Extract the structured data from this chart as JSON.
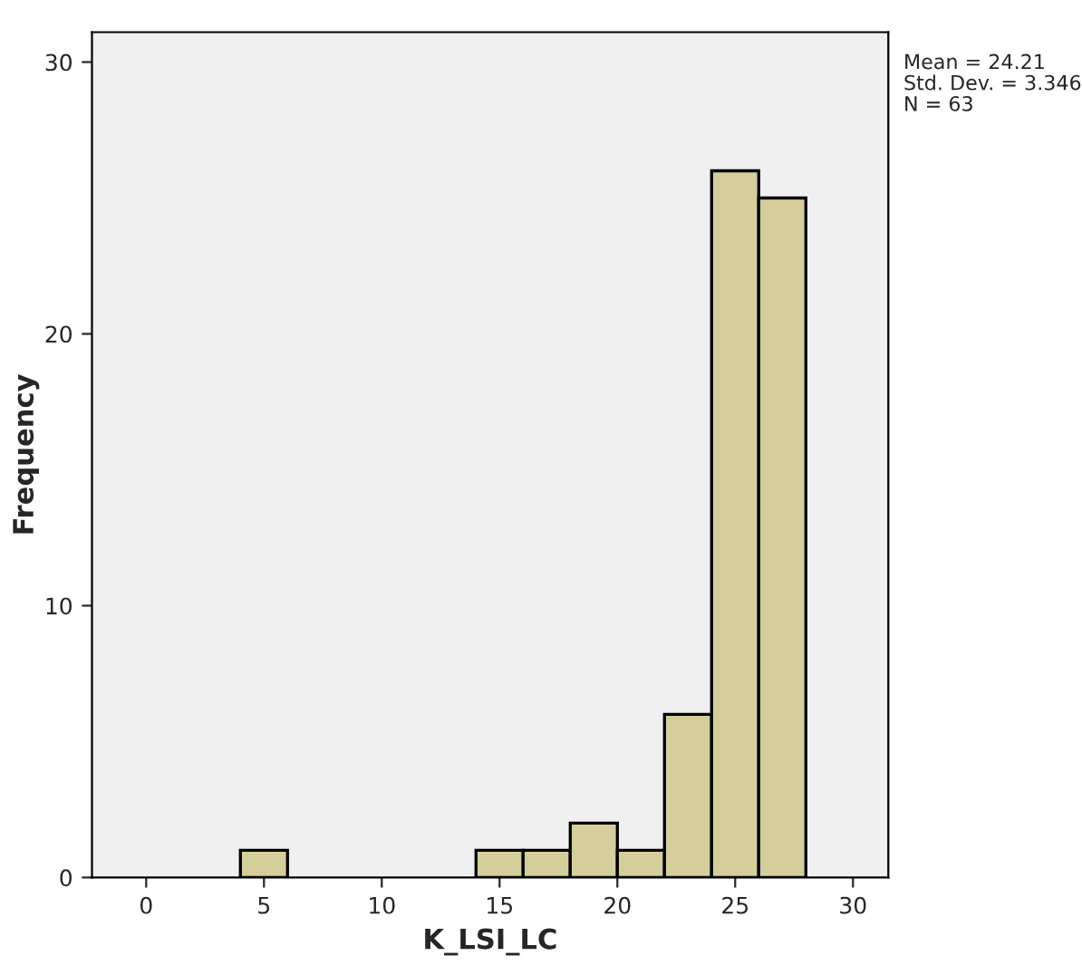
{
  "chart_data": {
    "type": "histogram",
    "xlabel": "K_LSI_LC",
    "ylabel": "Frequency",
    "bins": [
      4,
      6,
      8,
      10,
      12,
      14,
      16,
      18,
      20,
      22,
      24,
      26,
      28
    ],
    "values": [
      1,
      0,
      0,
      0,
      0,
      1,
      1,
      2,
      1,
      6,
      26,
      25
    ],
    "color": "#d4cf9a",
    "xlim": [
      -2.3,
      31.5
    ],
    "xticks": [
      0,
      5,
      10,
      15,
      20,
      25,
      30
    ],
    "ylim": [
      0,
      31.1
    ],
    "yticks": [
      0,
      10,
      20,
      30
    ],
    "grid": false,
    "annotations": [
      "Mean = 24.21",
      "Std. Dev. = 3.346",
      "N = 63"
    ]
  }
}
